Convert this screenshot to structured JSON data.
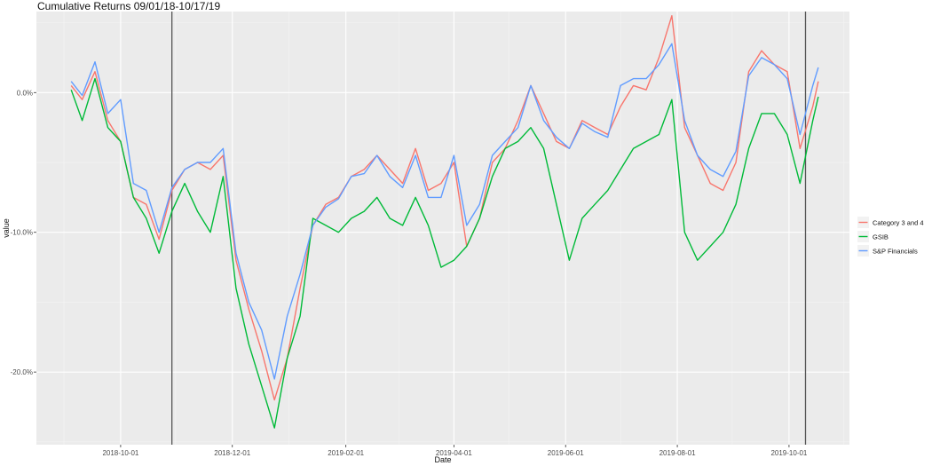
{
  "chart_data": {
    "type": "line",
    "title": "Cumulative Returns 09/01/18-10/17/19",
    "xlabel": "Date",
    "ylabel": "value",
    "x_ticks": [
      "2018-10-01",
      "2018-12-01",
      "2019-02-01",
      "2019-04-01",
      "2019-06-01",
      "2019-08-01",
      "2019-10-01"
    ],
    "y_ticks": [
      "0.0%",
      "-10.0%",
      "-20.0%"
    ],
    "x_range": [
      "2018-08-16",
      "2019-11-03"
    ],
    "y_range": [
      -25.2,
      5.8
    ],
    "grid": true,
    "legend_position": "right",
    "reference_lines": [
      "2018-10-29",
      "2019-10-10"
    ],
    "x": [
      "2018-09-04",
      "2018-09-10",
      "2018-09-17",
      "2018-09-24",
      "2018-10-01",
      "2018-10-08",
      "2018-10-15",
      "2018-10-22",
      "2018-10-29",
      "2018-11-05",
      "2018-11-12",
      "2018-11-19",
      "2018-11-26",
      "2018-12-03",
      "2018-12-10",
      "2018-12-17",
      "2018-12-24",
      "2018-12-31",
      "2019-01-07",
      "2019-01-14",
      "2019-01-21",
      "2019-01-28",
      "2019-02-04",
      "2019-02-11",
      "2019-02-18",
      "2019-02-25",
      "2019-03-04",
      "2019-03-11",
      "2019-03-18",
      "2019-03-25",
      "2019-04-01",
      "2019-04-08",
      "2019-04-15",
      "2019-04-22",
      "2019-04-29",
      "2019-05-06",
      "2019-05-13",
      "2019-05-20",
      "2019-05-27",
      "2019-06-03",
      "2019-06-10",
      "2019-06-17",
      "2019-06-24",
      "2019-07-01",
      "2019-07-08",
      "2019-07-15",
      "2019-07-22",
      "2019-07-29",
      "2019-08-05",
      "2019-08-12",
      "2019-08-19",
      "2019-08-26",
      "2019-09-02",
      "2019-09-09",
      "2019-09-16",
      "2019-09-23",
      "2019-09-30",
      "2019-10-07",
      "2019-10-14",
      "2019-10-17"
    ],
    "series": [
      {
        "name": "Category 3 and 4",
        "color": "#f8766d",
        "values": [
          0.5,
          -0.5,
          1.5,
          -2.0,
          -3.5,
          -7.5,
          -8.0,
          -10.5,
          -7.0,
          -5.5,
          -5.0,
          -5.5,
          -4.5,
          -12.0,
          -15.5,
          -18.5,
          -22.0,
          -19.0,
          -14.0,
          -9.5,
          -8.0,
          -7.5,
          -6.0,
          -5.5,
          -4.5,
          -5.5,
          -6.5,
          -4.0,
          -7.0,
          -6.5,
          -5.0,
          -11.0,
          -9.0,
          -5.0,
          -4.0,
          -2.0,
          0.5,
          -1.5,
          -3.5,
          -4.0,
          -2.0,
          -2.5,
          -3.0,
          -1.0,
          0.5,
          0.2,
          2.5,
          5.5,
          -2.5,
          -4.5,
          -6.5,
          -7.0,
          -5.0,
          1.5,
          3.0,
          2.0,
          1.5,
          -4.0,
          -1.0,
          0.8
        ]
      },
      {
        "name": "GSIB",
        "color": "#00ba38",
        "values": [
          0.2,
          -2.0,
          1.0,
          -2.5,
          -3.5,
          -7.5,
          -9.0,
          -11.5,
          -8.5,
          -6.5,
          -8.5,
          -10.0,
          -6.0,
          -14.0,
          -18.0,
          -21.0,
          -24.0,
          -19.0,
          -16.0,
          -9.0,
          -9.5,
          -10.0,
          -9.0,
          -8.5,
          -7.5,
          -9.0,
          -9.5,
          -7.5,
          -9.5,
          -12.5,
          -12.0,
          -11.0,
          -9.0,
          -6.0,
          -4.0,
          -3.5,
          -2.5,
          -4.0,
          -8.0,
          -12.0,
          -9.0,
          -8.0,
          -7.0,
          -5.5,
          -4.0,
          -3.5,
          -3.0,
          -0.5,
          -10.0,
          -12.0,
          -11.0,
          -10.0,
          -8.0,
          -4.0,
          -1.5,
          -1.5,
          -3.0,
          -6.5,
          -2.0,
          -0.3
        ]
      },
      {
        "name": "S&P Financials",
        "color": "#619cff",
        "values": [
          0.8,
          -0.2,
          2.2,
          -1.5,
          -0.5,
          -6.5,
          -7.0,
          -10.0,
          -6.8,
          -5.5,
          -5.0,
          -5.0,
          -4.0,
          -11.5,
          -15.0,
          -17.0,
          -20.5,
          -16.0,
          -13.0,
          -9.5,
          -8.2,
          -7.6,
          -6.0,
          -5.8,
          -4.5,
          -6.0,
          -6.8,
          -4.5,
          -7.5,
          -7.5,
          -4.5,
          -9.5,
          -8.0,
          -4.5,
          -3.5,
          -2.5,
          0.5,
          -2.0,
          -3.2,
          -4.0,
          -2.2,
          -2.8,
          -3.2,
          0.5,
          1.0,
          1.0,
          2.0,
          3.5,
          -2.0,
          -4.5,
          -5.5,
          -6.0,
          -4.2,
          1.2,
          2.5,
          2.0,
          1.0,
          -3.0,
          0.5,
          1.8
        ]
      }
    ]
  }
}
